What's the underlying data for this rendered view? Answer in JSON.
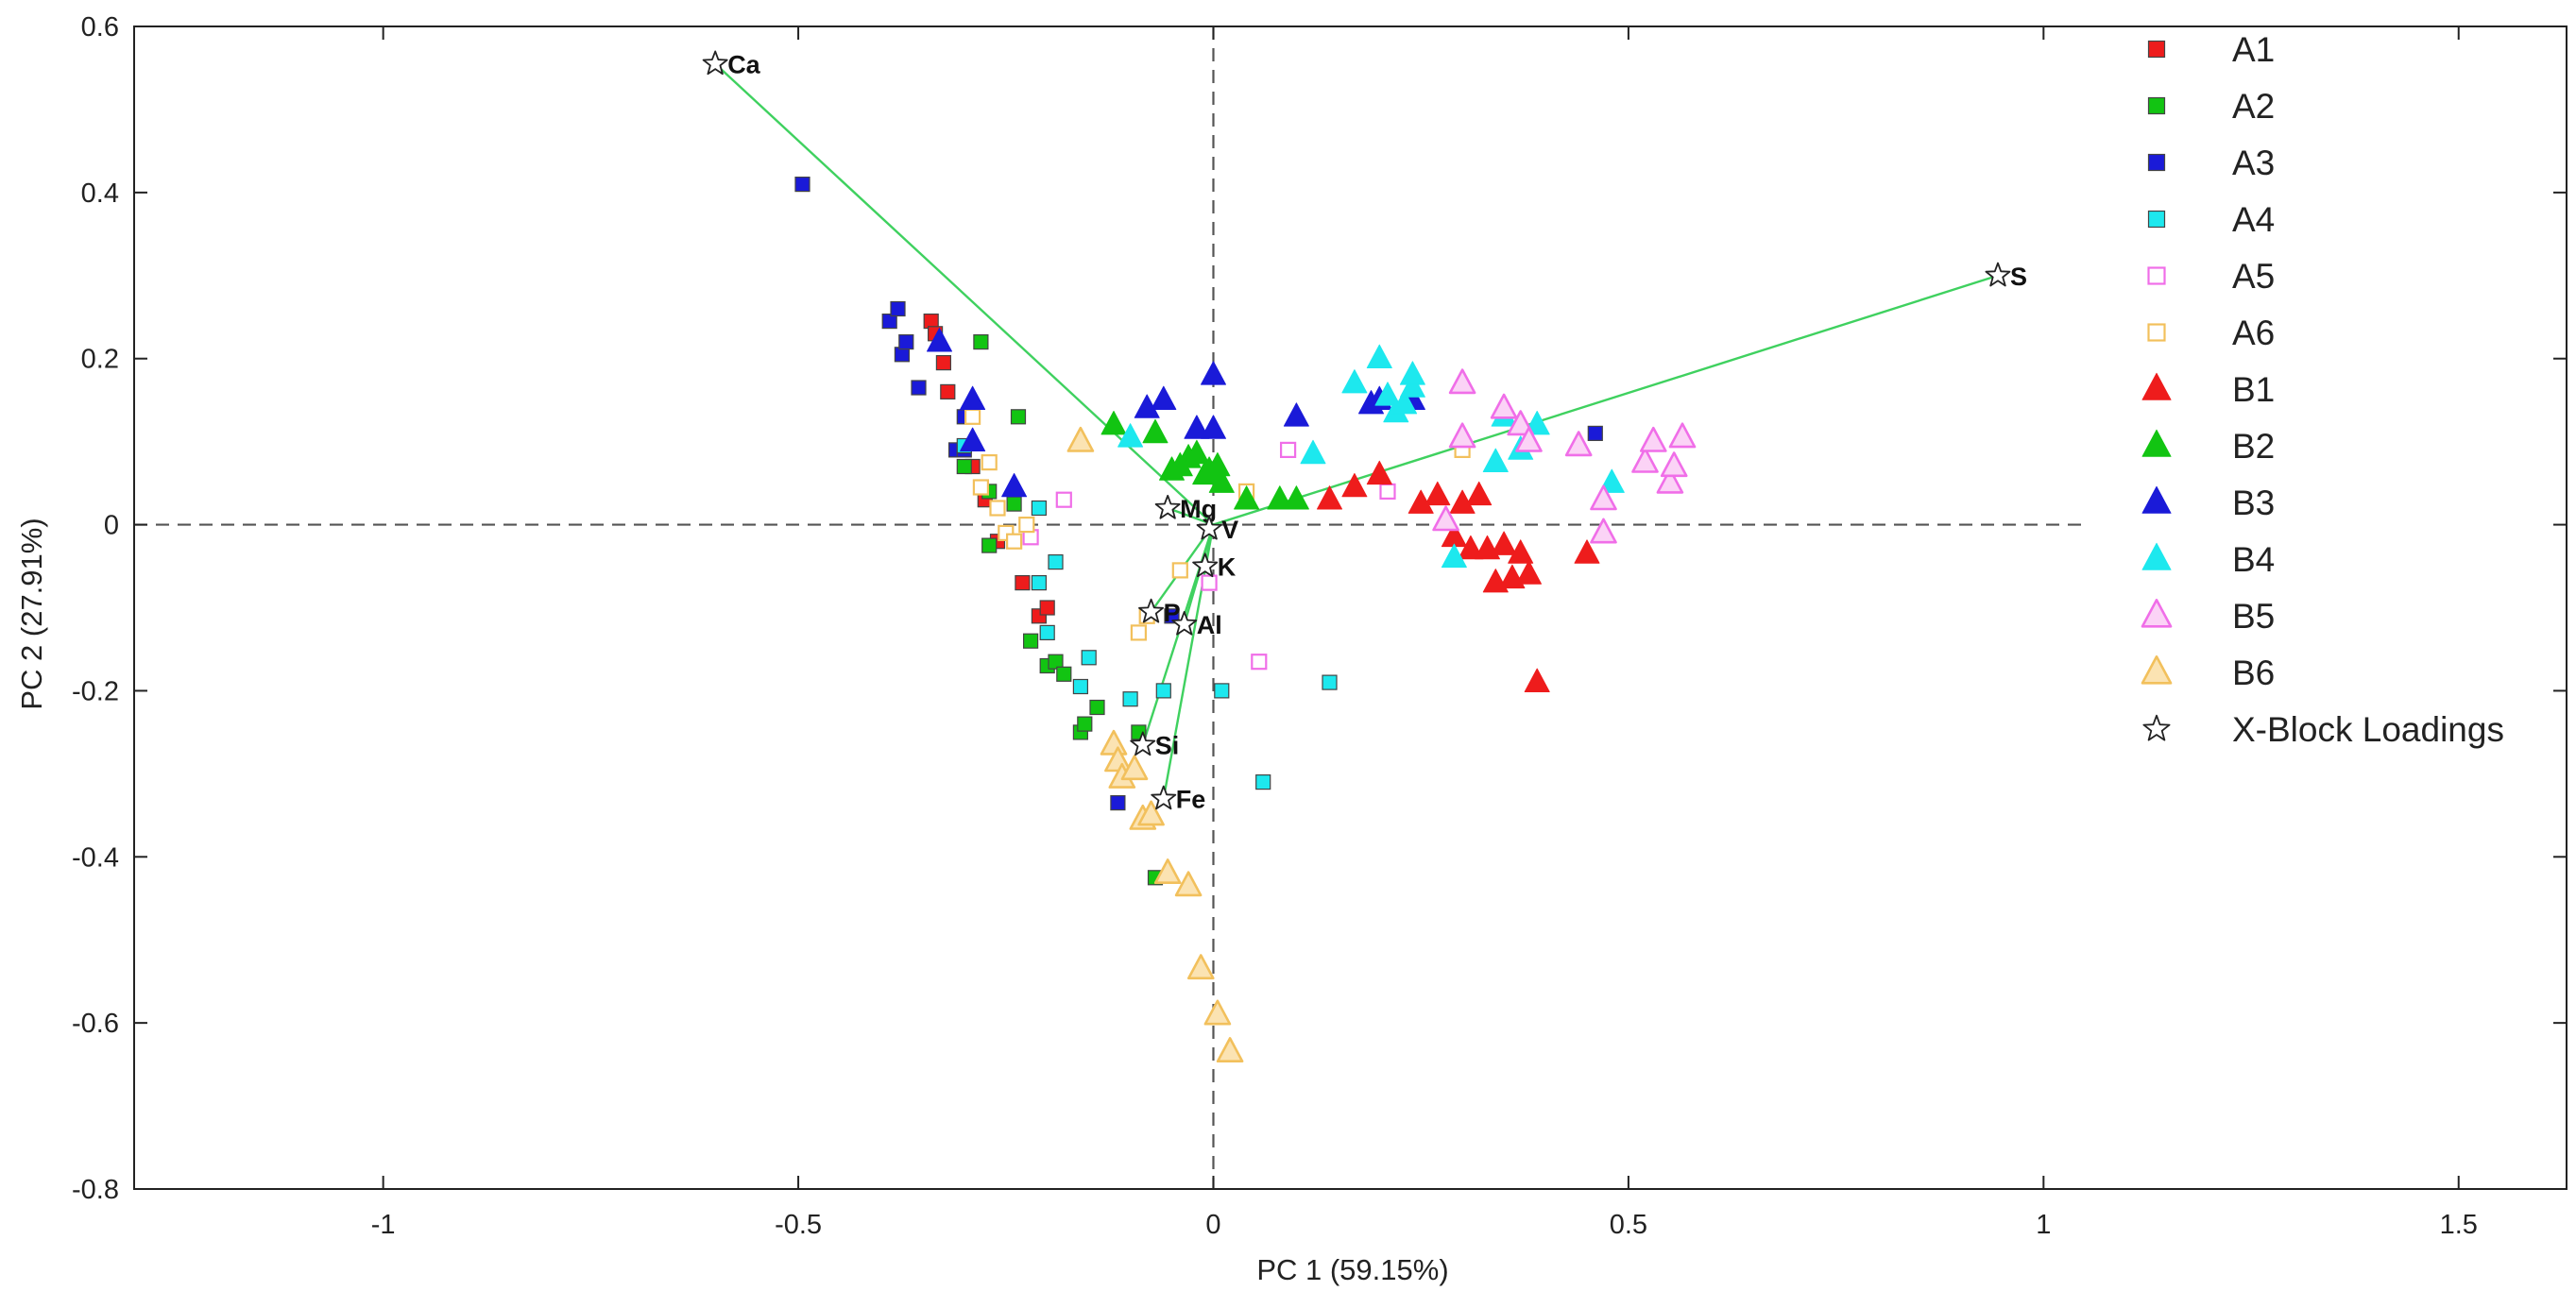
{
  "chart_data": {
    "type": "scatter",
    "title": "",
    "xlabel": "PC 1 (59.15%)",
    "ylabel": "PC 2 (27.91%)",
    "xlim": [
      -1.3,
      1.63
    ],
    "ylim": [
      -0.8,
      0.6
    ],
    "x_ticks": [
      -1,
      -0.5,
      0,
      0.5,
      1,
      1.5
    ],
    "x_tick_labels": [
      "-1",
      "-0.5",
      "0",
      "0.5",
      "1",
      "1.5"
    ],
    "y_ticks": [
      -0.8,
      -0.6,
      -0.4,
      -0.2,
      0,
      0.2,
      0.4,
      0.6
    ],
    "y_tick_labels": [
      "-0.8",
      "-0.6",
      "-0.4",
      "-0.2",
      "0",
      "0.2",
      "0.4",
      "0.6"
    ],
    "grid": false,
    "reference_lines": {
      "x": 0,
      "y": 0,
      "style": "dashed"
    },
    "legend_position": "top-right",
    "colors": {
      "red": "#ee1c1c",
      "green": "#12c412",
      "blue": "#1a1ad8",
      "cyan": "#1de8ee",
      "pink": "#f06ee8",
      "orange": "#f2c05c",
      "loading_line": "#3fd15f",
      "axis": "#222222",
      "text": "#222222"
    },
    "series": [
      {
        "name": "A1",
        "marker": "square-filled",
        "color": "red",
        "points": [
          [
            -0.34,
            0.245
          ],
          [
            -0.335,
            0.23
          ],
          [
            -0.325,
            0.195
          ],
          [
            -0.32,
            0.16
          ],
          [
            -0.29,
            0.07
          ],
          [
            -0.275,
            0.03
          ],
          [
            -0.26,
            -0.02
          ],
          [
            -0.23,
            -0.07
          ],
          [
            -0.21,
            -0.11
          ],
          [
            -0.2,
            -0.1
          ]
        ]
      },
      {
        "name": "A2",
        "marker": "square-filled",
        "color": "green",
        "points": [
          [
            -0.28,
            0.22
          ],
          [
            -0.235,
            0.13
          ],
          [
            -0.3,
            0.07
          ],
          [
            -0.27,
            0.04
          ],
          [
            -0.27,
            -0.025
          ],
          [
            -0.24,
            0.025
          ],
          [
            -0.22,
            -0.14
          ],
          [
            -0.2,
            -0.17
          ],
          [
            -0.19,
            -0.165
          ],
          [
            -0.18,
            -0.18
          ],
          [
            -0.16,
            -0.25
          ],
          [
            -0.155,
            -0.24
          ],
          [
            -0.14,
            -0.22
          ],
          [
            -0.09,
            -0.25
          ],
          [
            -0.07,
            -0.425
          ]
        ]
      },
      {
        "name": "A3",
        "marker": "square-filled",
        "color": "blue",
        "points": [
          [
            -0.495,
            0.41
          ],
          [
            -0.39,
            0.245
          ],
          [
            -0.38,
            0.26
          ],
          [
            -0.375,
            0.205
          ],
          [
            -0.37,
            0.22
          ],
          [
            -0.355,
            0.165
          ],
          [
            -0.3,
            0.13
          ],
          [
            -0.31,
            0.09
          ],
          [
            -0.3,
            0.09
          ],
          [
            -0.05,
            -0.11
          ],
          [
            -0.115,
            -0.335
          ],
          [
            0.46,
            0.11
          ]
        ]
      },
      {
        "name": "A4",
        "marker": "square-filled",
        "color": "cyan",
        "points": [
          [
            -0.3,
            0.095
          ],
          [
            -0.21,
            0.02
          ],
          [
            -0.21,
            -0.07
          ],
          [
            -0.2,
            -0.13
          ],
          [
            -0.19,
            -0.045
          ],
          [
            -0.16,
            -0.195
          ],
          [
            -0.15,
            -0.16
          ],
          [
            -0.1,
            -0.21
          ],
          [
            -0.06,
            -0.2
          ],
          [
            0.01,
            -0.2
          ],
          [
            0.06,
            -0.31
          ],
          [
            0.14,
            -0.19
          ]
        ]
      },
      {
        "name": "A5",
        "marker": "square-open",
        "color": "pink",
        "points": [
          [
            -0.18,
            0.03
          ],
          [
            -0.22,
            -0.015
          ],
          [
            -0.005,
            -0.07
          ],
          [
            0.055,
            -0.165
          ],
          [
            0.09,
            0.09
          ],
          [
            0.21,
            0.04
          ]
        ]
      },
      {
        "name": "A6",
        "marker": "square-open",
        "color": "orange",
        "points": [
          [
            -0.29,
            0.13
          ],
          [
            -0.28,
            0.045
          ],
          [
            -0.27,
            0.075
          ],
          [
            -0.26,
            0.02
          ],
          [
            -0.25,
            -0.01
          ],
          [
            -0.24,
            -0.02
          ],
          [
            -0.225,
            0.0
          ],
          [
            -0.08,
            -0.11
          ],
          [
            -0.09,
            -0.13
          ],
          [
            -0.04,
            -0.055
          ],
          [
            0.04,
            0.04
          ],
          [
            0.3,
            0.09
          ]
        ]
      },
      {
        "name": "B1",
        "marker": "triangle-filled",
        "color": "red",
        "points": [
          [
            0.14,
            0.03
          ],
          [
            0.17,
            0.045
          ],
          [
            0.2,
            0.06
          ],
          [
            0.25,
            0.025
          ],
          [
            0.27,
            0.035
          ],
          [
            0.29,
            -0.015
          ],
          [
            0.3,
            0.025
          ],
          [
            0.31,
            -0.03
          ],
          [
            0.32,
            0.035
          ],
          [
            0.33,
            -0.03
          ],
          [
            0.34,
            -0.07
          ],
          [
            0.35,
            -0.025
          ],
          [
            0.36,
            -0.065
          ],
          [
            0.37,
            -0.035
          ],
          [
            0.38,
            -0.06
          ],
          [
            0.39,
            -0.19
          ],
          [
            0.45,
            -0.035
          ]
        ]
      },
      {
        "name": "B2",
        "marker": "triangle-filled",
        "color": "green",
        "points": [
          [
            -0.12,
            0.12
          ],
          [
            -0.07,
            0.11
          ],
          [
            -0.05,
            0.065
          ],
          [
            -0.04,
            0.07
          ],
          [
            -0.03,
            0.08
          ],
          [
            -0.02,
            0.085
          ],
          [
            -0.01,
            0.06
          ],
          [
            -0.005,
            0.065
          ],
          [
            0.005,
            0.07
          ],
          [
            0.01,
            0.05
          ],
          [
            0.04,
            0.03
          ],
          [
            0.08,
            0.03
          ],
          [
            0.1,
            0.03
          ]
        ]
      },
      {
        "name": "B3",
        "marker": "triangle-filled",
        "color": "blue",
        "points": [
          [
            -0.33,
            0.22
          ],
          [
            -0.29,
            0.15
          ],
          [
            -0.29,
            0.1
          ],
          [
            -0.24,
            0.045
          ],
          [
            -0.08,
            0.14
          ],
          [
            -0.06,
            0.15
          ],
          [
            -0.02,
            0.115
          ],
          [
            0.0,
            0.115
          ],
          [
            0.0,
            0.18
          ],
          [
            0.1,
            0.13
          ],
          [
            0.19,
            0.145
          ],
          [
            0.2,
            0.15
          ],
          [
            0.24,
            0.15
          ]
        ]
      },
      {
        "name": "B4",
        "marker": "triangle-filled",
        "color": "cyan",
        "points": [
          [
            -0.1,
            0.105
          ],
          [
            0.17,
            0.17
          ],
          [
            0.2,
            0.2
          ],
          [
            0.21,
            0.155
          ],
          [
            0.22,
            0.135
          ],
          [
            0.23,
            0.145
          ],
          [
            0.24,
            0.165
          ],
          [
            0.24,
            0.18
          ],
          [
            0.12,
            0.085
          ],
          [
            0.29,
            -0.04
          ],
          [
            0.34,
            0.075
          ],
          [
            0.35,
            0.13
          ],
          [
            0.37,
            0.09
          ],
          [
            0.39,
            0.12
          ],
          [
            0.48,
            0.05
          ]
        ]
      },
      {
        "name": "B5",
        "marker": "triangle-open",
        "color": "pink",
        "points": [
          [
            0.28,
            0.005
          ],
          [
            0.3,
            0.105
          ],
          [
            0.3,
            0.17
          ],
          [
            0.35,
            0.14
          ],
          [
            0.37,
            0.12
          ],
          [
            0.38,
            0.1
          ],
          [
            0.44,
            0.095
          ],
          [
            0.47,
            0.03
          ],
          [
            0.47,
            -0.01
          ],
          [
            0.52,
            0.075
          ],
          [
            0.53,
            0.1
          ],
          [
            0.55,
            0.05
          ],
          [
            0.555,
            0.07
          ],
          [
            0.565,
            0.105
          ]
        ]
      },
      {
        "name": "B6",
        "marker": "triangle-open",
        "color": "orange",
        "points": [
          [
            -0.16,
            0.1
          ],
          [
            -0.12,
            -0.265
          ],
          [
            -0.115,
            -0.285
          ],
          [
            -0.11,
            -0.305
          ],
          [
            -0.095,
            -0.295
          ],
          [
            -0.085,
            -0.355
          ],
          [
            -0.075,
            -0.35
          ],
          [
            -0.055,
            -0.42
          ],
          [
            -0.03,
            -0.435
          ],
          [
            -0.015,
            -0.535
          ],
          [
            0.005,
            -0.59
          ],
          [
            0.02,
            -0.635
          ]
        ]
      }
    ],
    "loadings": {
      "name": "X-Block Loadings",
      "marker": "star-open",
      "points": [
        {
          "label": "Ca",
          "x": -0.6,
          "y": 0.555
        },
        {
          "label": "S",
          "x": 0.945,
          "y": 0.3
        },
        {
          "label": "Mg",
          "x": -0.055,
          "y": 0.02
        },
        {
          "label": "V",
          "x": -0.005,
          "y": -0.005
        },
        {
          "label": "K",
          "x": -0.01,
          "y": -0.05
        },
        {
          "label": "P",
          "x": -0.075,
          "y": -0.105
        },
        {
          "label": "Al",
          "x": -0.035,
          "y": -0.12
        },
        {
          "label": "Si",
          "x": -0.085,
          "y": -0.265
        },
        {
          "label": "Fe",
          "x": -0.06,
          "y": -0.33
        }
      ]
    }
  }
}
